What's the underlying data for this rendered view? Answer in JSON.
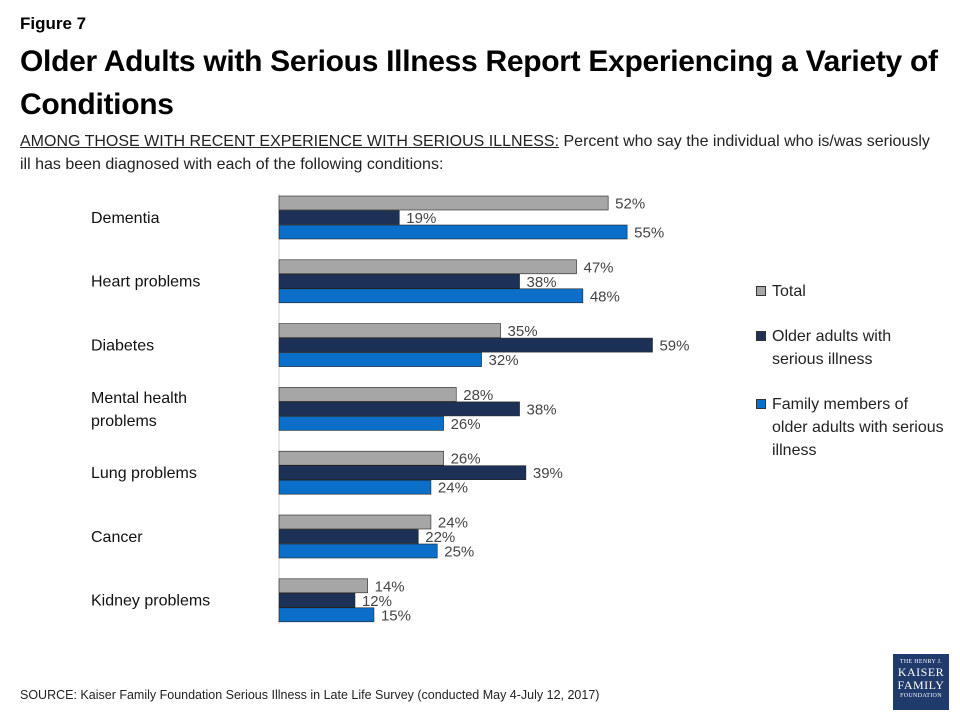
{
  "figure_label": "Figure 7",
  "title": "Older Adults with Serious Illness Report Experiencing a Variety of Conditions",
  "subtitle_lead": "AMONG THOSE WITH RECENT EXPERIENCE WITH SERIOUS ILLNESS:",
  "subtitle_rest": " Percent who say the individual who is/was seriously ill has been diagnosed with each of the following conditions:",
  "source": "SOURCE: Kaiser Family Foundation Serious Illness in Late Life Survey (conducted May 4-July 12, 2017)",
  "logo": {
    "line1": "THE HENRY J.",
    "line2": "KAISER",
    "line3": "FAMILY",
    "line4": "FOUNDATION"
  },
  "chart_data": {
    "type": "bar",
    "orientation": "horizontal",
    "categories": [
      "Dementia",
      "Heart problems",
      "Diabetes",
      "Mental health problems",
      "Lung problems",
      "Cancer",
      "Kidney problems"
    ],
    "series": [
      {
        "name": "Total",
        "color": "#a6a6a6",
        "values": [
          52,
          47,
          35,
          28,
          26,
          24,
          14
        ]
      },
      {
        "name": "Older adults with serious illness",
        "color": "#1c3155",
        "values": [
          19,
          38,
          59,
          38,
          39,
          22,
          12
        ]
      },
      {
        "name": "Family members of older adults with serious illness",
        "color": "#0b6fc9",
        "values": [
          55,
          48,
          32,
          26,
          24,
          25,
          15
        ]
      }
    ],
    "value_suffix": "%",
    "xlim": [
      0,
      100
    ],
    "grid": false,
    "legend_position": "right"
  }
}
